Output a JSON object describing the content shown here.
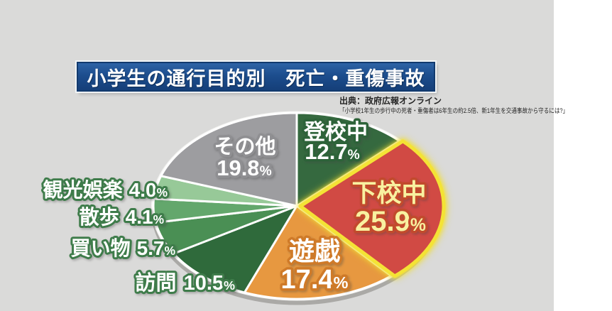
{
  "title": "小学生の通行目的別　死亡・重傷事故",
  "source": {
    "line1": "出典：政府広報オンライン",
    "line2": "「小学校1年生の歩行中の死者・重傷者は6年生の約2.5倍、新1年生を交通事故から守るには?」"
  },
  "chart_data": {
    "type": "pie",
    "title": "小学生の通行目的別 死亡・重傷事故",
    "unit": "%",
    "direction": "clockwise",
    "start_angle_deg": 0,
    "categories": [
      "登校中",
      "下校中",
      "遊戯",
      "訪問",
      "買い物",
      "散歩",
      "観光娯楽",
      "その他"
    ],
    "values": [
      12.7,
      25.9,
      17.4,
      10.5,
      5.7,
      4.1,
      4.0,
      19.8
    ],
    "colors": [
      "#35693F",
      "#D14A44",
      "#E79840",
      "#2F6A3B",
      "#4A8F54",
      "#63A76C",
      "#97C998",
      "#9D9DA0"
    ],
    "highlighted_slice": "下校中",
    "highlight_outline_color": "#F2E030",
    "slice_border_color": "#FFFFFF",
    "legend_position": "labels-on-and-around-slices"
  },
  "slice_labels": [
    {
      "name": "登校中",
      "value": "12.7",
      "pct": "%"
    },
    {
      "name": "下校中",
      "value": "25.9",
      "pct": "%"
    },
    {
      "name": "遊戯",
      "value": "17.4",
      "pct": "%"
    },
    {
      "name": "訪問",
      "value": "10.5",
      "pct": "%"
    },
    {
      "name": "買い物",
      "value": "5.7",
      "pct": "%"
    },
    {
      "name": "散歩",
      "value": "4.1",
      "pct": "%"
    },
    {
      "name": "観光娯楽",
      "value": "4.0",
      "pct": "%"
    },
    {
      "name": "その他",
      "value": "19.8",
      "pct": "%"
    }
  ]
}
